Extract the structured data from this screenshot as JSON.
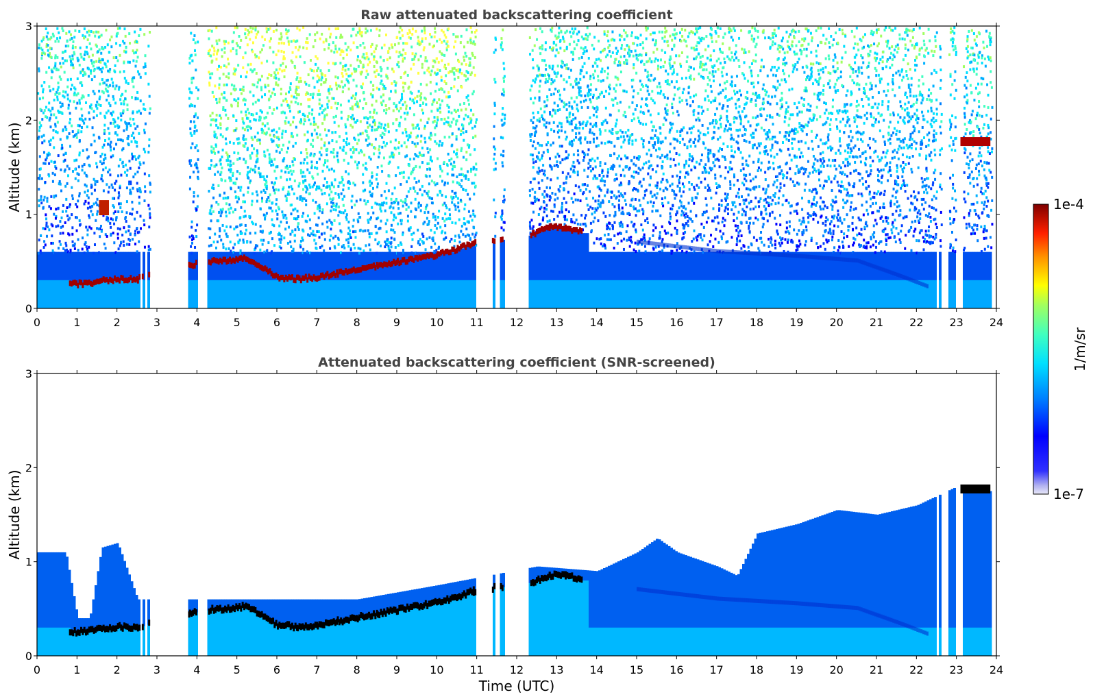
{
  "chart_data": [
    {
      "type": "heatmap",
      "title": "Raw attenuated backscattering coefficient",
      "xlabel": "",
      "ylabel": "Altitude (km)",
      "xlim": [
        0,
        24
      ],
      "ylim": [
        0,
        3
      ],
      "xticks": [
        "0",
        "1",
        "2",
        "3",
        "4",
        "5",
        "6",
        "7",
        "8",
        "9",
        "10",
        "11",
        "12",
        "13",
        "14",
        "15",
        "16",
        "17",
        "18",
        "19",
        "20",
        "21",
        "22",
        "23",
        "24"
      ],
      "yticks": [
        "0",
        "1",
        "2",
        "3"
      ],
      "data_gaps_utc": [
        [
          2.55,
          2.6
        ],
        [
          2.65,
          2.75
        ],
        [
          2.8,
          3.75
        ],
        [
          4.0,
          4.25
        ],
        [
          10.95,
          11.35
        ],
        [
          11.45,
          11.55
        ],
        [
          11.65,
          12.3
        ],
        [
          22.45,
          22.55
        ],
        [
          22.6,
          22.75
        ],
        [
          22.8,
          22.85
        ],
        [
          22.95,
          23.1
        ],
        [
          23.85,
          24.0
        ]
      ],
      "features": {
        "boundary_layer_top_km": {
          "time_utc": [
            0.8,
            1.2,
            1.6,
            2.0,
            2.5,
            3.8,
            4.2,
            4.8,
            5.2,
            5.6,
            6.0,
            6.5,
            7.0,
            7.5,
            8.0,
            8.5,
            9.0,
            9.5,
            10.0,
            10.5,
            10.9,
            12.4,
            12.8,
            13.2,
            13.6
          ],
          "altitude_km": [
            0.25,
            0.25,
            0.28,
            0.3,
            0.3,
            0.45,
            0.48,
            0.5,
            0.52,
            0.42,
            0.32,
            0.3,
            0.32,
            0.36,
            0.4,
            0.44,
            0.48,
            0.52,
            0.56,
            0.62,
            0.68,
            0.78,
            0.85,
            0.85,
            0.8
          ]
        },
        "elevated_layer": {
          "time_utc": [
            23.1,
            23.85
          ],
          "altitude_km": 1.75
        },
        "small_cloud": {
          "time_utc": [
            1.55,
            1.8
          ],
          "altitude_km": 1.05
        },
        "residual_layer": {
          "time_utc": [
            15.0,
            17.0,
            19.0,
            20.5,
            21.5,
            22.3
          ],
          "altitude_km": [
            0.7,
            0.6,
            0.55,
            0.5,
            0.35,
            0.22
          ]
        }
      }
    },
    {
      "type": "heatmap",
      "title": "Attenuated backscattering coefficient (SNR-screened)",
      "xlabel": "Time (UTC)",
      "ylabel": "Altitude (km)",
      "xlim": [
        0,
        24
      ],
      "ylim": [
        0,
        3
      ],
      "xticks": [
        "0",
        "1",
        "2",
        "3",
        "4",
        "5",
        "6",
        "7",
        "8",
        "9",
        "10",
        "11",
        "12",
        "13",
        "14",
        "15",
        "16",
        "17",
        "18",
        "19",
        "20",
        "21",
        "22",
        "23",
        "24"
      ],
      "yticks": [
        "0",
        "1",
        "2",
        "3"
      ],
      "screened_signal_top_km": {
        "time_utc": [
          0,
          0.7,
          1.0,
          1.3,
          1.6,
          2.0,
          2.5,
          4.0,
          6.0,
          8.0,
          10.0,
          12.5,
          14.0,
          15.0,
          15.5,
          16.0,
          17.0,
          17.5,
          18.0,
          19.0,
          20.0,
          21.0,
          22.0,
          23.0,
          23.8
        ],
        "altitude_km": [
          1.1,
          1.1,
          0.4,
          0.4,
          1.15,
          1.2,
          0.6,
          0.6,
          0.6,
          0.6,
          0.75,
          0.95,
          0.9,
          1.1,
          1.25,
          1.1,
          0.95,
          0.85,
          1.3,
          1.4,
          1.55,
          1.5,
          1.6,
          1.8,
          1.75
        ]
      }
    }
  ],
  "colorbar": {
    "label": "1/m/sr",
    "max_label": "1e-4",
    "min_label": "1e-7",
    "range": [
      1e-07,
      0.0001
    ],
    "colormap": "jet"
  }
}
